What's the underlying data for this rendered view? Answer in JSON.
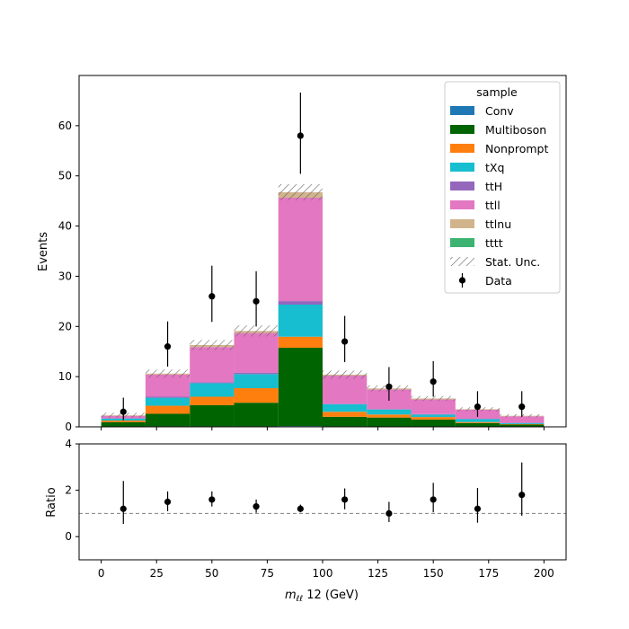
{
  "chart_data": {
    "type": "bar",
    "stacked": true,
    "x_bin_edges": [
      0,
      20,
      40,
      60,
      80,
      100,
      120,
      140,
      160,
      180,
      200
    ],
    "x_bin_centers": [
      10,
      30,
      50,
      70,
      90,
      110,
      130,
      150,
      170,
      190
    ],
    "xlabel_main": "m",
    "xlabel_sub": "ℓℓ",
    "xlabel_rest": " 12 (GeV)",
    "ylabel": "Events",
    "ratio_ylabel": "Ratio",
    "xlim": [
      -10,
      210
    ],
    "ylim": [
      0,
      70
    ],
    "ratio_ylim": [
      -1,
      4
    ],
    "x_ticks": [
      0,
      25,
      50,
      75,
      100,
      125,
      150,
      175,
      200
    ],
    "y_ticks": [
      0,
      10,
      20,
      30,
      40,
      50,
      60
    ],
    "ratio_y_ticks": [
      0,
      2,
      4
    ],
    "ratio_reference": 1,
    "legend_title": "sample",
    "legend_position": "top-right",
    "series": [
      {
        "name": "Conv",
        "color": "#1f77b4",
        "values": [
          0.05,
          0.1,
          0.1,
          0.1,
          0.15,
          0.1,
          0.05,
          0.05,
          0.05,
          0.05
        ]
      },
      {
        "name": "Multiboson",
        "color": "#006400",
        "values": [
          0.9,
          2.5,
          4.2,
          4.7,
          15.6,
          1.9,
          1.8,
          1.4,
          0.7,
          0.4
        ]
      },
      {
        "name": "Nonprompt",
        "color": "#ff7f0e",
        "values": [
          0.3,
          1.6,
          1.7,
          2.9,
          2.2,
          1.0,
          0.6,
          0.5,
          0.2,
          0.1
        ]
      },
      {
        "name": "tXq",
        "color": "#17becf",
        "values": [
          0.4,
          1.6,
          2.7,
          2.8,
          6.4,
          1.5,
          1.0,
          0.5,
          0.6,
          0.2
        ]
      },
      {
        "name": "ttH",
        "color": "#9467bd",
        "values": [
          0.05,
          0.2,
          0.2,
          0.3,
          0.7,
          0.1,
          0.1,
          0.1,
          0.05,
          0.05
        ]
      },
      {
        "name": "ttll",
        "color": "#e377c2",
        "values": [
          0.5,
          4.4,
          7.0,
          7.9,
          20.6,
          5.6,
          3.9,
          2.9,
          1.8,
          1.3
        ]
      },
      {
        "name": "ttlnu",
        "color": "#d2b48c",
        "values": [
          0.1,
          0.2,
          0.4,
          0.4,
          1.1,
          0.2,
          0.2,
          0.2,
          0.1,
          0.1
        ]
      },
      {
        "name": "tttt",
        "color": "#3cb371",
        "values": [
          0.0,
          0.0,
          0.0,
          0.0,
          0.0,
          0.0,
          0.0,
          0.0,
          0.0,
          0.0
        ]
      }
    ],
    "stat_unc_label": "Stat. Unc.",
    "stat_unc": [
      0.5,
      0.8,
      1.0,
      1.1,
      1.6,
      0.8,
      0.6,
      0.5,
      0.4,
      0.3
    ],
    "data_label": "Data",
    "data": {
      "values": [
        3,
        16,
        26,
        25,
        58,
        17,
        8,
        9,
        4,
        4
      ],
      "err_low": [
        1.7,
        4.0,
        5.1,
        5.0,
        7.6,
        4.1,
        2.8,
        3.0,
        2.0,
        2.0
      ],
      "err_high": [
        2.8,
        5.0,
        6.1,
        6.0,
        8.6,
        5.1,
        3.9,
        4.1,
        3.1,
        3.1
      ]
    },
    "ratio": {
      "values": [
        1.2,
        1.5,
        1.6,
        1.3,
        1.2,
        1.6,
        1.0,
        1.6,
        1.2,
        1.8
      ],
      "err_low": [
        0.65,
        0.4,
        0.3,
        0.27,
        0.15,
        0.42,
        0.37,
        0.55,
        0.6,
        0.9
      ],
      "err_high": [
        1.2,
        0.45,
        0.35,
        0.3,
        0.18,
        0.48,
        0.5,
        0.72,
        0.9,
        1.4
      ]
    }
  }
}
